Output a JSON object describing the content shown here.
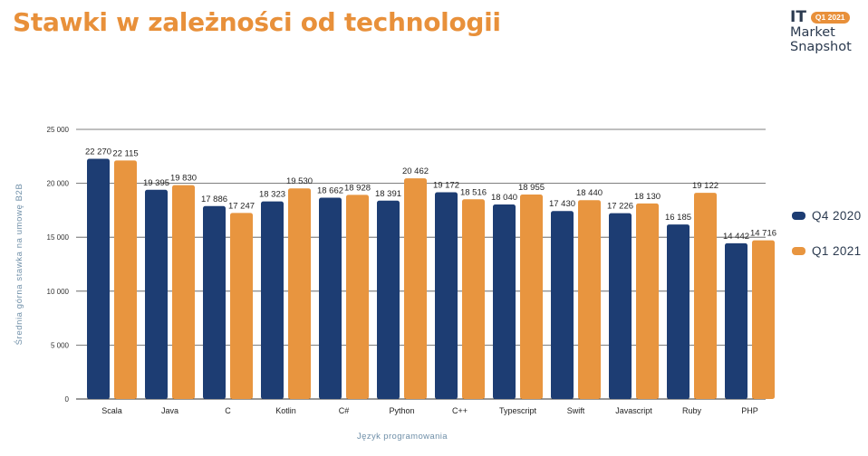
{
  "header": {
    "title": "Stawki w zależności od technologii",
    "brand_it": "IT",
    "brand_badge": "Q1 2021",
    "brand_line1": "Market",
    "brand_line2": "Snapshot"
  },
  "colors": {
    "series_q4": "#1d3d73",
    "series_q1": "#e8953f",
    "title": "#e8903a",
    "axis_text": "#6f8fa8"
  },
  "chart_data": {
    "type": "bar",
    "title": "Stawki w zależności od technologii",
    "xlabel": "Język programowania",
    "ylabel": "Średnia górna stawka na umowę B2B",
    "ylim": [
      0,
      25000
    ],
    "yticks": [
      0,
      5000,
      10000,
      15000,
      20000,
      25000
    ],
    "ytick_labels": [
      "0",
      "5 000",
      "10 000",
      "15 000",
      "20 000",
      "25 000"
    ],
    "grid": true,
    "legend_position": "right",
    "categories": [
      "Scala",
      "Java",
      "C",
      "Kotlin",
      "C#",
      "Python",
      "C++",
      "Typescript",
      "Swift",
      "Javascript",
      "Ruby",
      "PHP"
    ],
    "series": [
      {
        "name": "Q4 2020",
        "values": [
          22270,
          19395,
          17886,
          18323,
          18662,
          18391,
          19172,
          18040,
          17430,
          17226,
          16185,
          14442
        ],
        "labels": [
          "22 270",
          "19 395",
          "17 886",
          "18 323",
          "18 662",
          "18 391",
          "19 172",
          "18 040",
          "17 430",
          "17 226",
          "16 185",
          "14 442"
        ]
      },
      {
        "name": "Q1 2021",
        "values": [
          22115,
          19830,
          17247,
          19530,
          18928,
          20462,
          18516,
          18955,
          18440,
          18130,
          19122,
          14716
        ],
        "labels": [
          "22 115",
          "19 830",
          "17 247",
          "19 530",
          "18 928",
          "20 462",
          "18 516",
          "18 955",
          "18 440",
          "18 130",
          "19 122",
          "14 716"
        ]
      }
    ]
  }
}
